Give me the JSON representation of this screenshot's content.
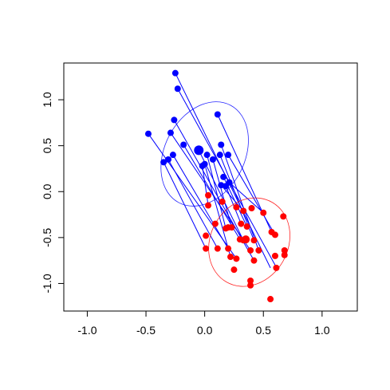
{
  "chart_data": {
    "type": "scatter",
    "title": "",
    "xlabel": "",
    "ylabel": "",
    "xlim": [
      -1.2,
      1.3
    ],
    "ylim": [
      -1.3,
      1.4
    ],
    "x_ticks": [
      "-1.0",
      "-0.5",
      "0.0",
      "0.5",
      "1.0"
    ],
    "x_tick_values": [
      -1.0,
      -0.5,
      0.0,
      0.5,
      1.0
    ],
    "y_ticks": [
      "-1.0",
      "-0.5",
      "0.0",
      "0.5",
      "1.0"
    ],
    "y_tick_values": [
      -1.0,
      -0.5,
      0.0,
      0.5,
      1.0
    ],
    "grid": false,
    "colors": {
      "group_a": "#0000ff",
      "group_b": "#ff0000",
      "axis": "#000000"
    },
    "group_a_points": [
      [
        -0.25,
        1.29
      ],
      [
        -0.23,
        1.12
      ],
      [
        -0.26,
        0.78
      ],
      [
        -0.48,
        0.63
      ],
      [
        -0.29,
        0.64
      ],
      [
        -0.27,
        0.4
      ],
      [
        -0.31,
        0.35
      ],
      [
        -0.35,
        0.32
      ],
      [
        -0.18,
        0.51
      ],
      [
        -0.05,
        0.45
      ],
      [
        0.0,
        0.3
      ],
      [
        0.02,
        0.4
      ],
      [
        0.07,
        0.35
      ],
      [
        0.11,
        0.84
      ],
      [
        0.14,
        0.51
      ],
      [
        0.13,
        0.4
      ],
      [
        0.2,
        0.4
      ],
      [
        0.16,
        0.16
      ],
      [
        0.18,
        0.06
      ],
      [
        0.21,
        0.1
      ],
      [
        0.14,
        0.07
      ],
      [
        -0.02,
        0.28
      ]
    ],
    "group_a_centroid": [
      -0.05,
      0.45
    ],
    "group_b_points": [
      [
        0.03,
        -0.04
      ],
      [
        0.03,
        -0.15
      ],
      [
        0.15,
        -0.11
      ],
      [
        0.27,
        -0.17
      ],
      [
        0.33,
        -0.21
      ],
      [
        0.4,
        -0.18
      ],
      [
        0.5,
        -0.23
      ],
      [
        0.67,
        -0.27
      ],
      [
        0.09,
        -0.35
      ],
      [
        0.2,
        -0.39
      ],
      [
        0.23,
        -0.39
      ],
      [
        0.31,
        -0.35
      ],
      [
        0.36,
        -0.38
      ],
      [
        0.57,
        -0.44
      ],
      [
        0.01,
        -0.48
      ],
      [
        0.18,
        -0.4
      ],
      [
        0.3,
        -0.52
      ],
      [
        0.33,
        -0.53
      ],
      [
        0.42,
        -0.53
      ],
      [
        0.6,
        -0.47
      ],
      [
        0.01,
        -0.62
      ],
      [
        0.11,
        -0.62
      ],
      [
        0.2,
        -0.62
      ],
      [
        0.27,
        -0.73
      ],
      [
        0.39,
        -0.64
      ],
      [
        0.46,
        -0.64
      ],
      [
        0.22,
        -0.71
      ],
      [
        0.42,
        -0.75
      ],
      [
        0.68,
        -0.64
      ],
      [
        0.68,
        -0.69
      ],
      [
        0.6,
        -0.7
      ],
      [
        0.25,
        -0.85
      ],
      [
        0.61,
        -0.83
      ],
      [
        0.39,
        -0.97
      ],
      [
        0.39,
        -1.02
      ],
      [
        0.56,
        -1.17
      ]
    ],
    "group_b_centroid": [
      0.35,
      -0.52
    ],
    "links": [
      [
        [
          -0.25,
          1.29
        ],
        [
          0.56,
          -0.83
        ]
      ],
      [
        [
          -0.23,
          1.12
        ],
        [
          0.6,
          -0.8
        ]
      ],
      [
        [
          -0.26,
          0.78
        ],
        [
          0.42,
          -0.75
        ]
      ],
      [
        [
          -0.48,
          0.63
        ],
        [
          0.27,
          -0.73
        ]
      ],
      [
        [
          -0.29,
          0.64
        ],
        [
          0.39,
          -0.64
        ]
      ],
      [
        [
          -0.27,
          0.4
        ],
        [
          0.2,
          -0.62
        ]
      ],
      [
        [
          -0.31,
          0.35
        ],
        [
          0.11,
          -0.62
        ]
      ],
      [
        [
          -0.35,
          0.32
        ],
        [
          0.01,
          -0.62
        ]
      ],
      [
        [
          -0.18,
          0.51
        ],
        [
          0.3,
          -0.52
        ]
      ],
      [
        [
          -0.05,
          0.45
        ],
        [
          0.33,
          -0.53
        ]
      ],
      [
        [
          0.0,
          0.3
        ],
        [
          0.22,
          -0.71
        ]
      ],
      [
        [
          0.02,
          0.4
        ],
        [
          0.18,
          -0.4
        ]
      ],
      [
        [
          0.07,
          0.35
        ],
        [
          0.23,
          -0.39
        ]
      ],
      [
        [
          0.11,
          0.84
        ],
        [
          0.57,
          -0.44
        ]
      ],
      [
        [
          0.14,
          0.51
        ],
        [
          0.46,
          -0.64
        ]
      ],
      [
        [
          0.13,
          0.4
        ],
        [
          0.42,
          -0.53
        ]
      ],
      [
        [
          0.2,
          0.4
        ],
        [
          0.6,
          -0.47
        ]
      ],
      [
        [
          0.16,
          0.16
        ],
        [
          0.36,
          -0.38
        ]
      ],
      [
        [
          0.18,
          0.06
        ],
        [
          0.31,
          -0.35
        ]
      ],
      [
        [
          0.21,
          0.1
        ],
        [
          0.5,
          -0.23
        ]
      ],
      [
        [
          0.14,
          0.07
        ],
        [
          0.33,
          -0.21
        ]
      ],
      [
        [
          -0.02,
          0.28
        ],
        [
          0.03,
          -0.15
        ]
      ]
    ],
    "ellipse_a": {
      "center": [
        0.0,
        0.41
      ],
      "rx": 0.34,
      "ry": 0.6,
      "rotation": 28
    },
    "ellipse_b": {
      "center": [
        0.38,
        -0.55
      ],
      "rx": 0.33,
      "ry": 0.5,
      "rotation": 30
    }
  }
}
